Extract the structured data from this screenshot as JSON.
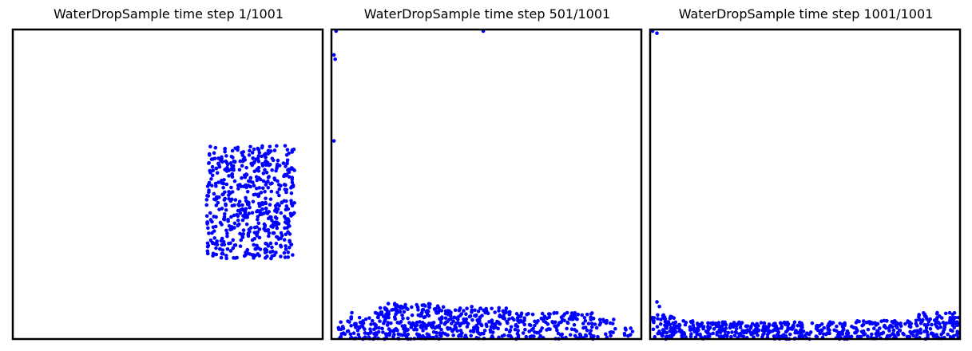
{
  "chart_data": [
    {
      "type": "scatter",
      "title": "WaterDropSample time step 1/1001",
      "xlim": [
        0,
        1
      ],
      "ylim": [
        0,
        1
      ],
      "point_color": "#0000ff",
      "frame_color": "#000000",
      "regions": [
        {
          "x": [
            0.625,
            0.91
          ],
          "y": [
            0.26,
            0.625
          ],
          "count": 560
        }
      ],
      "points": []
    },
    {
      "type": "scatter",
      "title": "WaterDropSample time step 501/1001",
      "xlim": [
        0,
        1
      ],
      "ylim": [
        0,
        1
      ],
      "point_color": "#0000ff",
      "frame_color": "#000000",
      "regions": [
        {
          "x": [
            0.02,
            0.15
          ],
          "y": [
            0.0,
            0.06
          ],
          "count": 40
        },
        {
          "x": [
            0.06,
            0.16
          ],
          "y": [
            0.0,
            0.09
          ],
          "count": 40
        },
        {
          "x": [
            0.15,
            0.35
          ],
          "y": [
            0.0,
            0.115
          ],
          "count": 200
        },
        {
          "x": [
            0.35,
            0.58
          ],
          "y": [
            0.0,
            0.105
          ],
          "count": 180
        },
        {
          "x": [
            0.58,
            0.85
          ],
          "y": [
            0.0,
            0.085
          ],
          "count": 150
        },
        {
          "x": [
            0.85,
            0.92
          ],
          "y": [
            0.0,
            0.065
          ],
          "count": 20
        },
        {
          "x": [
            0.94,
            0.99
          ],
          "y": [
            0.0,
            0.035
          ],
          "count": 8
        }
      ],
      "points": [
        [
          0.015,
          0.995
        ],
        [
          0.49,
          0.995
        ],
        [
          0.008,
          0.918
        ],
        [
          0.012,
          0.904
        ],
        [
          0.008,
          0.64
        ]
      ]
    },
    {
      "type": "scatter",
      "title": "WaterDropSample time step 1001/1001",
      "xlim": [
        0,
        1
      ],
      "ylim": [
        0,
        1
      ],
      "point_color": "#0000ff",
      "frame_color": "#000000",
      "regions": [
        {
          "x": [
            0.005,
            0.08
          ],
          "y": [
            0.0,
            0.08
          ],
          "count": 70
        },
        {
          "x": [
            0.08,
            0.14
          ],
          "y": [
            0.0,
            0.06
          ],
          "count": 30
        },
        {
          "x": [
            0.14,
            0.65
          ],
          "y": [
            0.0,
            0.055
          ],
          "count": 300
        },
        {
          "x": [
            0.65,
            0.85
          ],
          "y": [
            0.0,
            0.06
          ],
          "count": 110
        },
        {
          "x": [
            0.85,
            0.995
          ],
          "y": [
            0.0,
            0.085
          ],
          "count": 110
        }
      ],
      "points": [
        [
          0.008,
          0.995
        ],
        [
          0.022,
          0.988
        ],
        [
          0.022,
          0.12
        ],
        [
          0.03,
          0.105
        ]
      ]
    }
  ]
}
